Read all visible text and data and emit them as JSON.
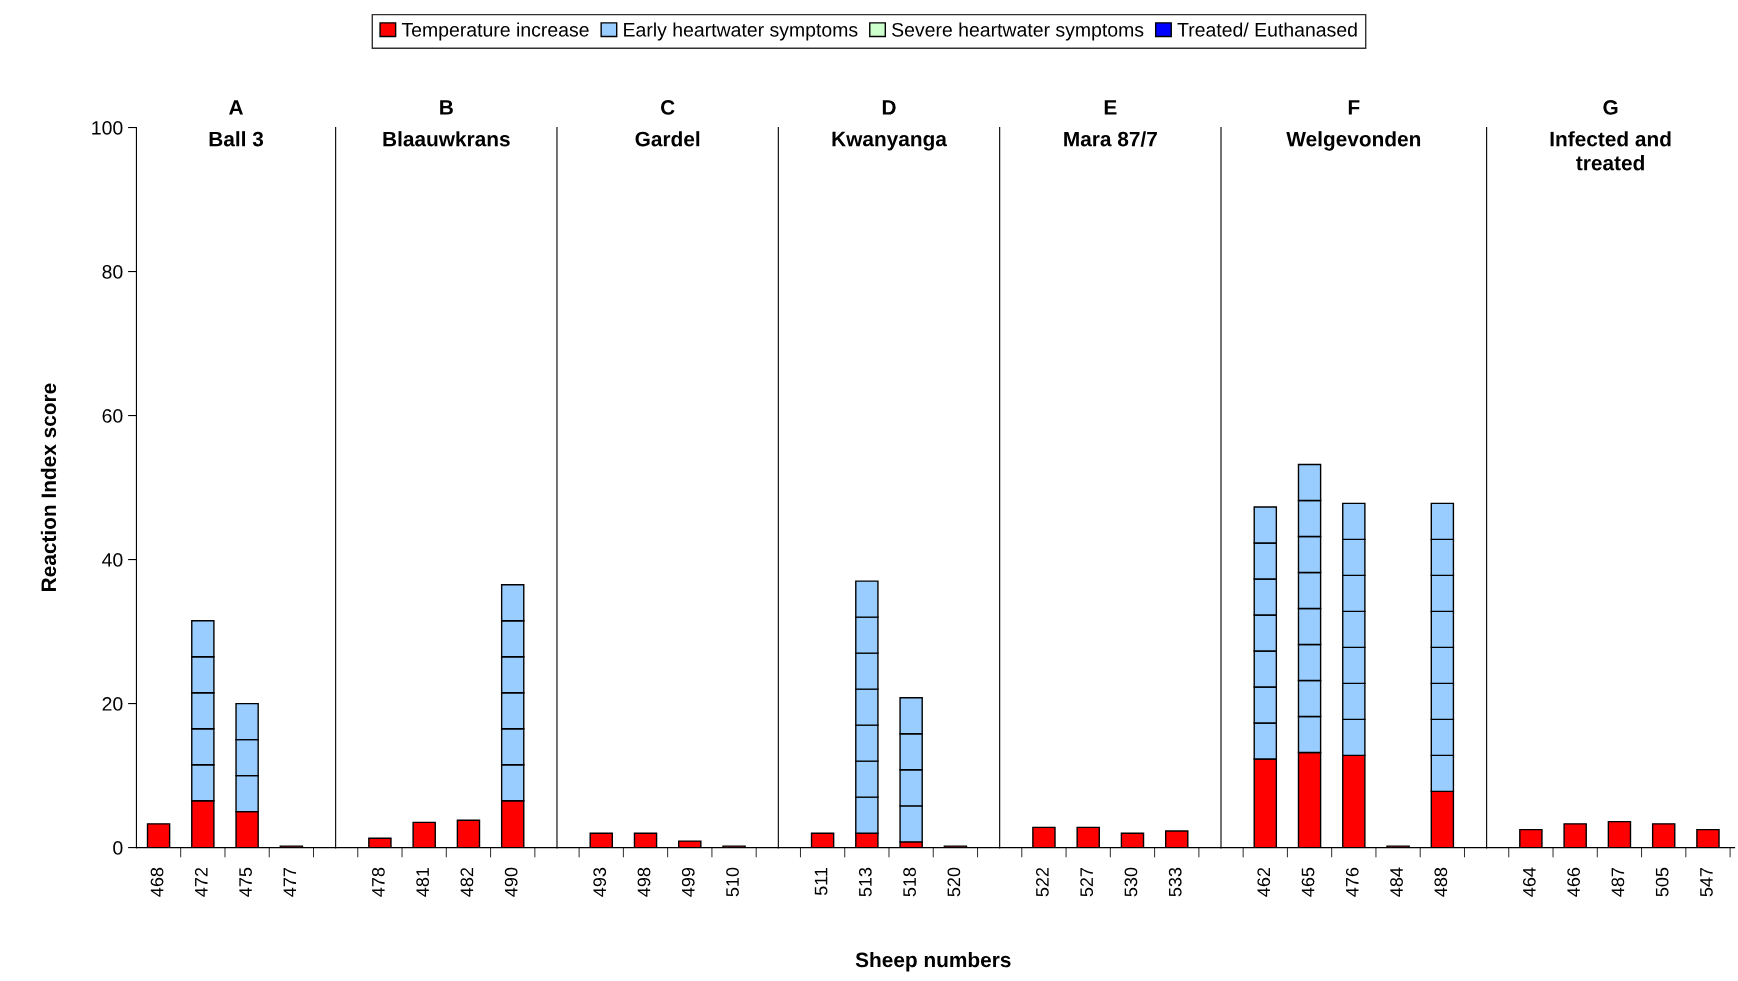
{
  "chart_data": [
    {
      "type": "bar",
      "stacked": true,
      "title": "A",
      "subtitle": "Ball 3",
      "ylabel": "Reaction Index score",
      "categories": [
        "468",
        "472",
        "475",
        "477"
      ],
      "ylim": [
        0,
        100
      ],
      "yticks": [
        0,
        20,
        40,
        60,
        80,
        100
      ],
      "legend": "top",
      "series": [
        {
          "name": "Temperature increase",
          "color": "#ff0000",
          "values": [
            3.3,
            6.5,
            5,
            0.2
          ]
        },
        {
          "name": "Early heartwater symptoms",
          "color": "#99ccff",
          "values": [
            null,
            5,
            5,
            null
          ]
        },
        {
          "color": "#99ccff",
          "values": [
            null,
            5,
            5,
            null
          ]
        },
        {
          "color": "#99ccff",
          "values": [
            null,
            5,
            5,
            null
          ]
        },
        {
          "color": "#99ccff",
          "values": [
            null,
            5,
            null,
            null
          ]
        },
        {
          "color": "#99ccff",
          "values": [
            null,
            5,
            null,
            null
          ]
        },
        {
          "name": "Severe heartwater symptoms",
          "color": "#ccffcc",
          "values": [
            null,
            null,
            null,
            null
          ]
        },
        {
          "name": "Treated/ Euthanased",
          "color": "#0000ff",
          "values": [
            null,
            null,
            null,
            null
          ]
        }
      ]
    },
    {
      "type": "bar",
      "stacked": true,
      "title": "B",
      "subtitle": "Blaauwkrans",
      "categories": [
        "478",
        "481",
        "482",
        "490"
      ],
      "ylim": [
        0,
        100
      ],
      "tick_labels": "x",
      "series": [
        {
          "color": "#ff0000",
          "values": [
            1.3,
            3.5,
            3.8,
            6.5
          ]
        },
        {
          "color": "#99ccff",
          "values": [
            null,
            null,
            null,
            5
          ]
        },
        {
          "color": "#99ccff",
          "values": [
            null,
            null,
            null,
            5
          ]
        },
        {
          "color": "#99ccff",
          "values": [
            null,
            null,
            null,
            5
          ]
        },
        {
          "color": "#99ccff",
          "values": [
            null,
            null,
            null,
            5
          ]
        },
        {
          "color": "#99ccff",
          "values": [
            null,
            null,
            null,
            5
          ]
        },
        {
          "color": "#99ccff",
          "values": [
            null,
            null,
            null,
            5
          ]
        }
      ]
    },
    {
      "type": "bar",
      "stacked": true,
      "title": "C",
      "subtitle": "Gardel",
      "categories": [
        "493",
        "498",
        "499",
        "510"
      ],
      "ylim": [
        0,
        100
      ],
      "tick_labels": "x",
      "series": [
        {
          "color": "#ff0000",
          "values": [
            2,
            2,
            0.9,
            0.2
          ]
        }
      ]
    },
    {
      "type": "bar",
      "stacked": true,
      "title": "D",
      "subtitle": "Kwanyanga",
      "xlabel": "Sheep numbers",
      "categories": [
        "511",
        "513",
        "518",
        "520"
      ],
      "ylim": [
        0,
        100
      ],
      "tick_labels": "x",
      "series": [
        {
          "color": "#ff0000",
          "values": [
            2,
            2,
            0.8,
            0.2
          ]
        },
        {
          "color": "#99ccff",
          "values": [
            null,
            5,
            5,
            null
          ]
        },
        {
          "color": "#99ccff",
          "values": [
            null,
            5,
            5,
            null
          ]
        },
        {
          "color": "#99ccff",
          "values": [
            null,
            5,
            5,
            null
          ]
        },
        {
          "color": "#99ccff",
          "values": [
            null,
            5,
            5,
            null
          ]
        },
        {
          "color": "#99ccff",
          "values": [
            null,
            5,
            null,
            null
          ]
        },
        {
          "color": "#99ccff",
          "values": [
            null,
            5,
            null,
            null
          ]
        },
        {
          "color": "#99ccff",
          "values": [
            null,
            5,
            null,
            null
          ]
        }
      ]
    },
    {
      "type": "bar",
      "stacked": true,
      "title": "E",
      "subtitle": "Mara 87/7",
      "categories": [
        "522",
        "527",
        "530",
        "533"
      ],
      "ylim": [
        0,
        100
      ],
      "tick_labels": "x",
      "series": [
        {
          "color": "#ff0000",
          "values": [
            2.8,
            2.8,
            2,
            2.3
          ]
        }
      ]
    },
    {
      "type": "bar",
      "stacked": true,
      "title": "F",
      "subtitle": "Welgevonden",
      "categories": [
        "462",
        "465",
        "476",
        "484",
        "488"
      ],
      "ylim": [
        0,
        100
      ],
      "tick_labels": "x",
      "series": [
        {
          "color": "#ff0000",
          "values": [
            12.3,
            13.2,
            12.8,
            0.2,
            7.8
          ]
        },
        {
          "color": "#99ccff",
          "values": [
            5,
            5,
            5,
            null,
            5
          ]
        },
        {
          "color": "#99ccff",
          "values": [
            5,
            5,
            5,
            null,
            5
          ]
        },
        {
          "color": "#99ccff",
          "values": [
            5,
            5,
            5,
            null,
            5
          ]
        },
        {
          "color": "#99ccff",
          "values": [
            5,
            5,
            5,
            null,
            5
          ]
        },
        {
          "color": "#99ccff",
          "values": [
            5,
            5,
            5,
            null,
            5
          ]
        },
        {
          "color": "#99ccff",
          "values": [
            5,
            5,
            5,
            null,
            5
          ]
        },
        {
          "color": "#99ccff",
          "values": [
            5,
            5,
            5,
            null,
            5
          ]
        },
        {
          "color": "#99ccff",
          "values": [
            null,
            5,
            null,
            null,
            5
          ]
        }
      ]
    },
    {
      "type": "bar",
      "stacked": true,
      "title": "G",
      "subtitle": "Infected and\ntreated",
      "categories": [
        "464",
        "466",
        "487",
        "505",
        "547"
      ],
      "ylim": [
        0,
        100
      ],
      "tick_labels": "x",
      "series": [
        {
          "color": "#ff0000",
          "values": [
            2.5,
            3.3,
            3.6,
            3.3,
            2.5
          ]
        }
      ]
    }
  ]
}
